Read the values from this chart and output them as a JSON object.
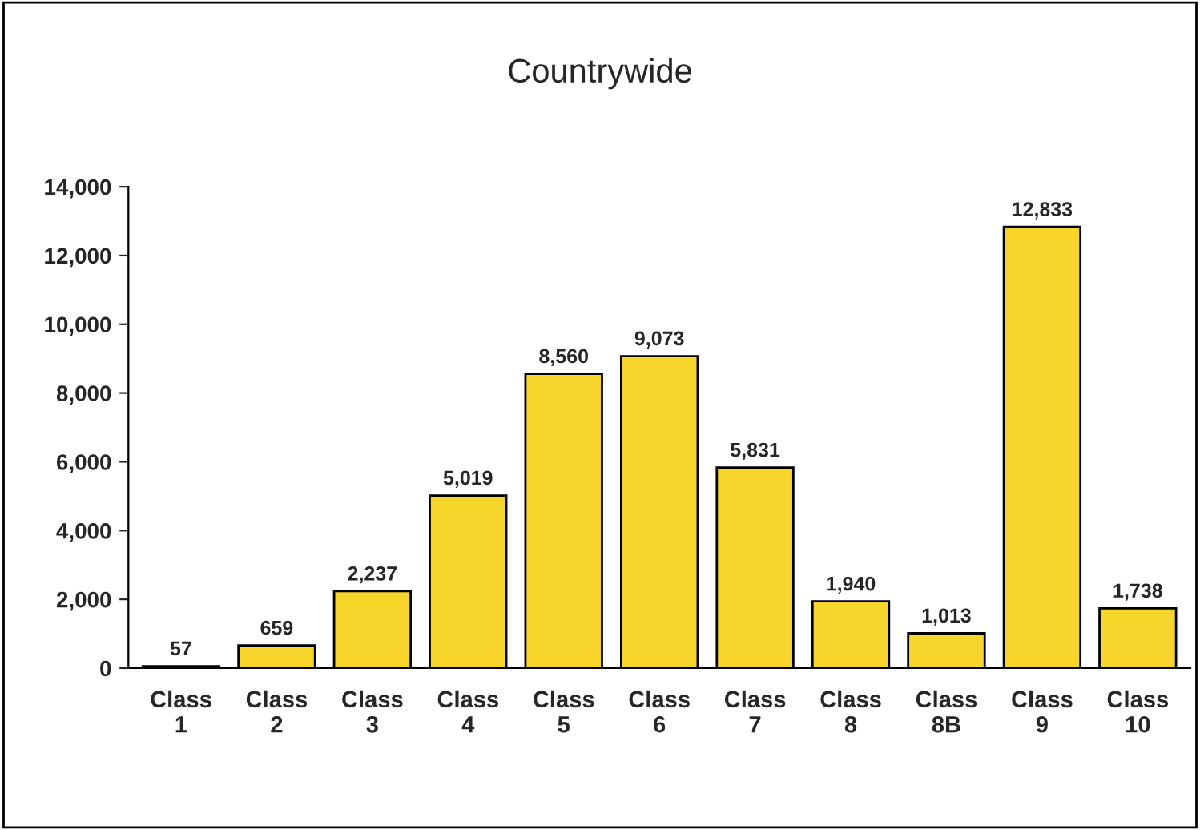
{
  "chart_data": {
    "type": "bar",
    "title": "Countrywide",
    "categories": [
      "Class 1",
      "Class 2",
      "Class 3",
      "Class 4",
      "Class 5",
      "Class 6",
      "Class 7",
      "Class 8",
      "Class 8B",
      "Class 9",
      "Class 10"
    ],
    "values": [
      57,
      659,
      2237,
      5019,
      8560,
      9073,
      5831,
      1940,
      1013,
      12833,
      1738
    ],
    "value_labels": [
      "57",
      "659",
      "2,237",
      "5,019",
      "8,560",
      "9,073",
      "5,831",
      "1,940",
      "1,013",
      "12,833",
      "1,738"
    ],
    "color": "#f7d52a",
    "ylim": [
      0,
      14000
    ],
    "yticks": [
      {
        "value": 0,
        "label": "0"
      },
      {
        "value": 2000,
        "label": "2,000"
      },
      {
        "value": 4000,
        "label": "4,000"
      },
      {
        "value": 6000,
        "label": "6,000"
      },
      {
        "value": 8000,
        "label": "8,000"
      },
      {
        "value": 10000,
        "label": "10,000"
      },
      {
        "value": 12000,
        "label": "12,000"
      },
      {
        "value": 14000,
        "label": "14,000"
      }
    ],
    "grid": false
  }
}
